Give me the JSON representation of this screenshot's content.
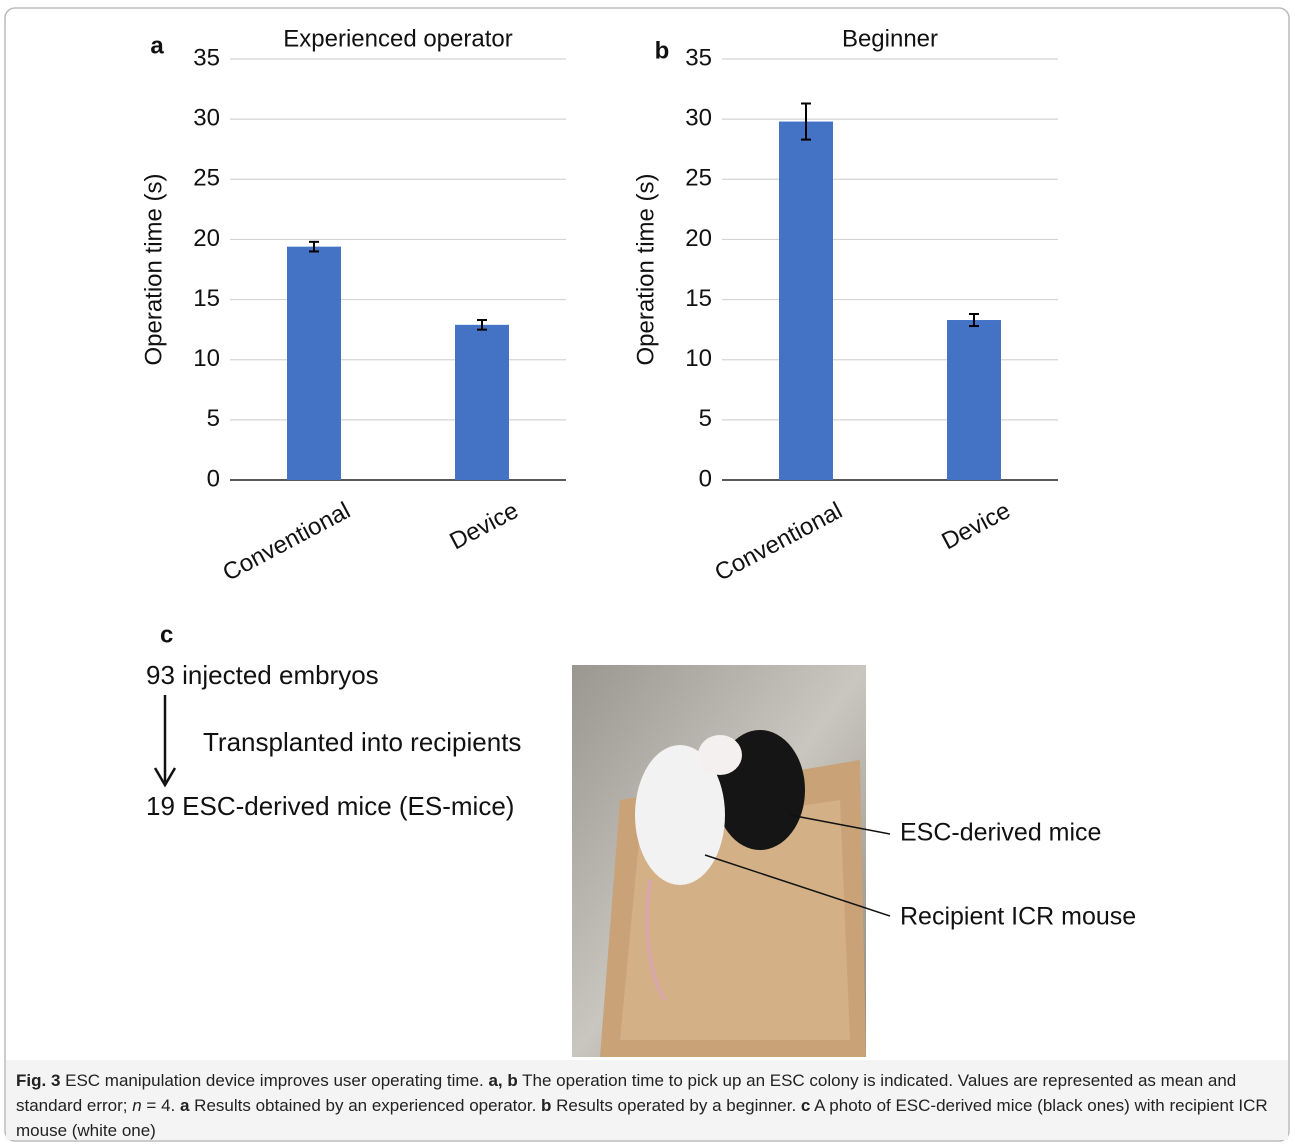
{
  "chart_data": [
    {
      "type": "bar",
      "panel": "a",
      "title": "Experienced operator",
      "ylabel": "Operation time (s)",
      "categories": [
        "Conventional",
        "Device"
      ],
      "values": [
        19.4,
        12.9
      ],
      "errors": [
        0.4,
        0.4
      ],
      "color": "#4472c4",
      "ylim": [
        0,
        35
      ],
      "yticks": [
        0,
        5,
        10,
        15,
        20,
        25,
        30,
        35
      ],
      "grid": true
    },
    {
      "type": "bar",
      "panel": "b",
      "title": "Beginner",
      "ylabel": "Operation time (s)",
      "categories": [
        "Conventional",
        "Device"
      ],
      "values": [
        29.8,
        13.3
      ],
      "errors": [
        1.5,
        0.5
      ],
      "color": "#4472c4",
      "ylim": [
        0,
        35
      ],
      "yticks": [
        0,
        5,
        10,
        15,
        20,
        25,
        30,
        35
      ],
      "grid": true
    }
  ],
  "panel_c": {
    "label": "c",
    "flow": {
      "start": "93 injected embryos",
      "step": "Transplanted into recipients",
      "end": "19 ESC-derived mice (ES-mice)"
    },
    "photo_labels": [
      "ESC-derived mice",
      "Recipient ICR mouse"
    ]
  },
  "caption": [
    {
      "text": "Fig. 3",
      "bold": true
    },
    {
      "text": " ESC manipulation device improves user operating time. "
    },
    {
      "text": "a, b",
      "bold": true
    },
    {
      "text": " The operation time to pick up an ESC colony is indicated. Values are represented as mean and standard error; "
    },
    {
      "text": "n",
      "italic": true
    },
    {
      "text": " = 4. "
    },
    {
      "text": "a",
      "bold": true
    },
    {
      "text": " Results obtained by an experienced operator. "
    },
    {
      "text": "b",
      "bold": true
    },
    {
      "text": " Results operated by a beginner. "
    },
    {
      "text": "c",
      "bold": true
    },
    {
      "text": " A photo of ESC-derived mice (black ones) with recipient ICR mouse (white one)"
    }
  ]
}
